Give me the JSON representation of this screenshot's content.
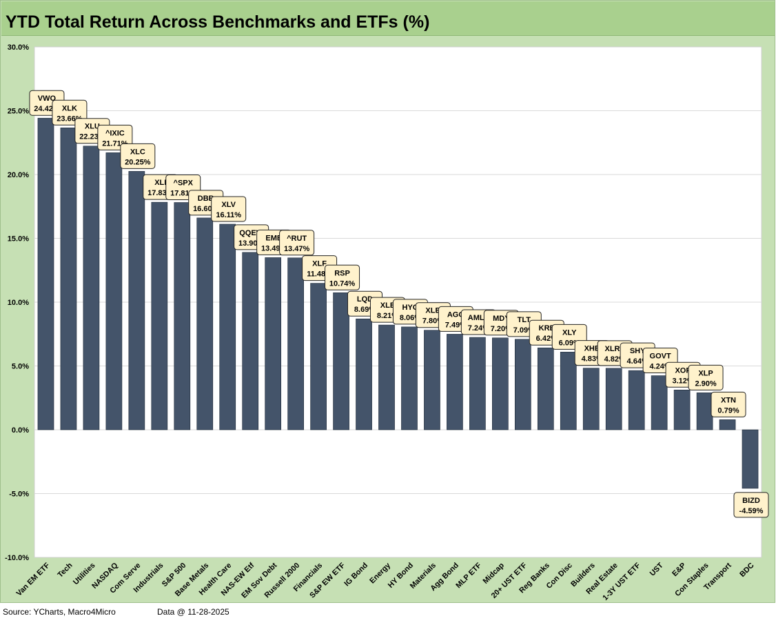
{
  "title": "YTD Total Return Across Benchmarks and ETFs (%)",
  "chart_data": {
    "type": "bar",
    "title": "YTD Total Return Across Benchmarks and ETFs (%)",
    "xlabel": "",
    "ylabel": "",
    "ylim": [
      -10,
      30
    ],
    "yticks": [
      -10,
      -5,
      0,
      5,
      10,
      15,
      20,
      25,
      30
    ],
    "ytick_labels": [
      "-10.0%",
      "-5.0%",
      "0.0%",
      "5.0%",
      "10.0%",
      "15.0%",
      "20.0%",
      "25.0%",
      "30.0%"
    ],
    "grid": true,
    "bar_color": "#44546a",
    "label_fill": "#fff2cc",
    "categories": [
      "Van EM ETF",
      "Tech",
      "Utilities",
      "NASDAQ",
      "Com Serve",
      "Industrials",
      "S&P 500",
      "Base Metals",
      "Health Care",
      "NAS-EW Etf",
      "EM Sov Debt",
      "Russell 2000",
      "Financials",
      "S&P EW ETF",
      "IG Bond",
      "Energy",
      "HY Bond",
      "Materials",
      "Agg Bond",
      "MLP ETF",
      "Midcap",
      "20+ UST ETF",
      "Reg Banks",
      "Con Disc",
      "Builders",
      "Real Estate",
      "1-3Y UST ETF",
      "UST",
      "E&P",
      "Con Staples",
      "Transport",
      "BDC"
    ],
    "tickers": [
      "VWO",
      "XLK",
      "XLU",
      "^IXIC",
      "XLC",
      "XLI",
      "^SPX",
      "DBB",
      "XLV",
      "QQEW",
      "EMB",
      "^RUT",
      "XLF",
      "RSP",
      "LQD",
      "XLE",
      "HYG",
      "XLB",
      "AGG",
      "AMLP",
      "MDY",
      "TLT",
      "KRE",
      "XLY",
      "XHB",
      "XLRE",
      "SHY",
      "GOVT",
      "XOP",
      "XLP",
      "XTN",
      "BIZD"
    ],
    "values": [
      24.42,
      23.66,
      22.23,
      21.71,
      20.25,
      17.83,
      17.81,
      16.6,
      16.11,
      13.9,
      13.49,
      13.47,
      11.48,
      10.74,
      8.69,
      8.21,
      8.06,
      7.8,
      7.49,
      7.24,
      7.2,
      7.09,
      6.42,
      6.09,
      4.83,
      4.82,
      4.64,
      4.24,
      3.12,
      2.9,
      0.79,
      -4.59
    ],
    "value_labels": [
      "24.42%",
      "23.66%",
      "22.23%",
      "21.71%",
      "20.25%",
      "17.83%",
      "17.81%",
      "16.60%",
      "16.11%",
      "13.90%",
      "13.49%",
      "13.47%",
      "11.48%",
      "10.74%",
      "8.69%",
      "8.21%",
      "8.06%",
      "7.80%",
      "7.49%",
      "7.24%",
      "7.20%",
      "7.09%",
      "6.42%",
      "6.09%",
      "4.83%",
      "4.82%",
      "4.64%",
      "4.24%",
      "3.12%",
      "2.90%",
      "0.79%",
      "-4.59%"
    ]
  },
  "footer": {
    "source": "Source: YCharts, Macro4Micro",
    "data_date": "Data @ 11-28-2025"
  }
}
